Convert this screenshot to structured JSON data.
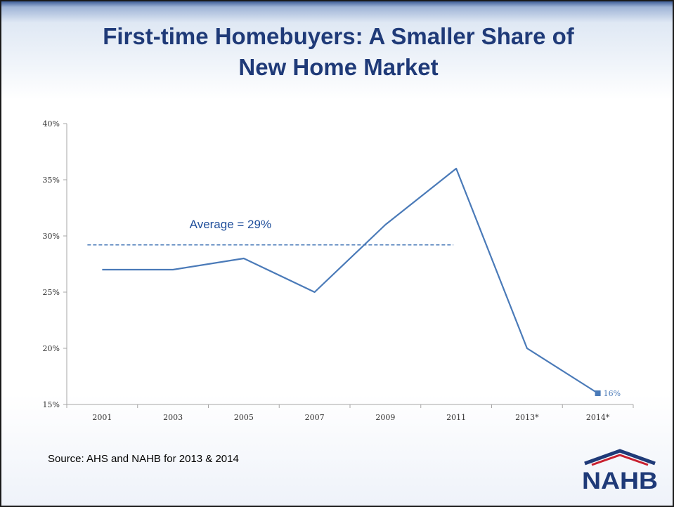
{
  "title": {
    "line1": "First-time Homebuyers: A Smaller Share of",
    "line2": "New Home Market"
  },
  "source": "Source: AHS and NAHB for 2013 & 2014",
  "logo": {
    "text": "NAHB",
    "colors": {
      "navy": "#1f3a78",
      "red": "#c8202f"
    }
  },
  "colors": {
    "line": "#4a7ab8",
    "title": "#1f3a78",
    "axis": "#a6a6a6"
  },
  "chart_data": {
    "type": "line",
    "categories": [
      "2001",
      "2003",
      "2005",
      "2007",
      "2009",
      "2011",
      "2013*",
      "2014*"
    ],
    "series": [
      {
        "values": [
          27,
          27,
          28,
          25,
          31,
          36,
          20,
          16
        ]
      }
    ],
    "ylim": [
      15,
      40
    ],
    "yticks": [
      15,
      20,
      25,
      30,
      35,
      40
    ],
    "ytick_suffix": "%",
    "reference_line": {
      "value": 29.2,
      "label": "Average = 29%",
      "start_index": 0,
      "end_index": 5,
      "style": "dashed"
    },
    "data_label": {
      "index": 7,
      "text": "16%"
    },
    "grid": false,
    "legend": "none"
  }
}
